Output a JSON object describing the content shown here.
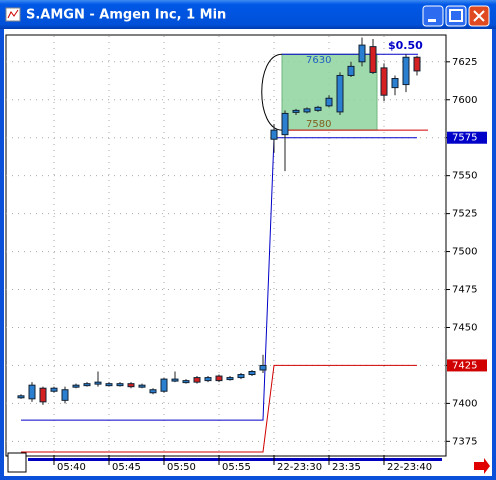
{
  "chart_data": {
    "type": "candlestick",
    "title": "S.AMGN - Amgen Inc, 1 Min",
    "categories": [
      null,
      null,
      null,
      "05:40",
      null,
      null,
      null,
      null,
      "05:45",
      null,
      null,
      null,
      null,
      "05:50",
      null,
      null,
      null,
      null,
      "05:55",
      null,
      null,
      null,
      null,
      "22-23:30",
      null,
      null,
      null,
      null,
      "23:35",
      null,
      null,
      null,
      null,
      "22-23:40",
      null,
      null,
      null
    ],
    "open": [
      7404,
      7403,
      7410,
      7408,
      7402,
      7411,
      7412,
      7413,
      7412,
      7412,
      7413,
      7411,
      7407,
      7408,
      7415,
      7414,
      7417,
      7415,
      7418,
      7416,
      7417,
      7419,
      7422,
      7574,
      7577,
      7592,
      7592,
      7593,
      7596,
      7592,
      7616,
      7625,
      7635,
      7621,
      7608,
      7610,
      7628
    ],
    "high": [
      7406,
      7414,
      7411,
      7411,
      7411,
      7413,
      7414,
      7421,
      7414,
      7414,
      7414,
      7413,
      7410,
      7417,
      7421,
      7416,
      7418,
      7418,
      7419,
      7418,
      7420,
      7422,
      7432,
      7584,
      7593,
      7594,
      7595,
      7596,
      7603,
      7618,
      7625,
      7641,
      7640,
      7624,
      7616,
      7630,
      7629
    ],
    "low": [
      7403,
      7401,
      7399,
      7407,
      7400,
      7410,
      7411,
      7411,
      7411,
      7411,
      7410,
      7410,
      7406,
      7407,
      7414,
      7413,
      7413,
      7414,
      7414,
      7415,
      7416,
      7418,
      7420,
      7565,
      7553,
      7590,
      7591,
      7592,
      7595,
      7590,
      7615,
      7622,
      7617,
      7599,
      7603,
      7605,
      7616
    ],
    "close": [
      7405,
      7412,
      7401,
      7410,
      7409,
      7412,
      7413,
      7414,
      7413,
      7413,
      7411,
      7412,
      7409,
      7416,
      7416,
      7415,
      7414,
      7417,
      7415,
      7417,
      7419,
      7421,
      7425,
      7580,
      7591,
      7593,
      7594,
      7595,
      7601,
      7616,
      7622,
      7636,
      7618,
      7603,
      7614,
      7628,
      7619
    ],
    "up_color": "#2a7fd0",
    "down_color": "#d42020",
    "series": [
      {
        "color": "#0000c8",
        "values": [
          7389,
          7389,
          7389,
          7389,
          7389,
          7389,
          7389,
          7389,
          7389,
          7389,
          7389,
          7389,
          7389,
          7389,
          7389,
          7389,
          7389,
          7389,
          7389,
          7389,
          7389,
          7389,
          7389,
          7575,
          7575,
          7575,
          7575,
          7575,
          7575,
          7575,
          7575,
          7575,
          7575,
          7575,
          7575,
          7575,
          7575
        ]
      },
      {
        "color": "#d00000",
        "values": [
          7368,
          7368,
          7368,
          7368,
          7368,
          7368,
          7368,
          7368,
          7368,
          7368,
          7368,
          7368,
          7368,
          7368,
          7368,
          7368,
          7368,
          7368,
          7368,
          7368,
          7368,
          7368,
          7368,
          7425,
          7425,
          7425,
          7425,
          7425,
          7425,
          7425,
          7425,
          7425,
          7425,
          7425,
          7425,
          7425,
          7425
        ]
      }
    ],
    "annotation": {
      "high": 7630,
      "low": 7580,
      "label": "$0.50"
    },
    "ylim": [
      7366,
      7642
    ],
    "yticks": [
      7375,
      7400,
      7425,
      7450,
      7475,
      7500,
      7525,
      7550,
      7575,
      7600,
      7625
    ],
    "grid": true
  }
}
